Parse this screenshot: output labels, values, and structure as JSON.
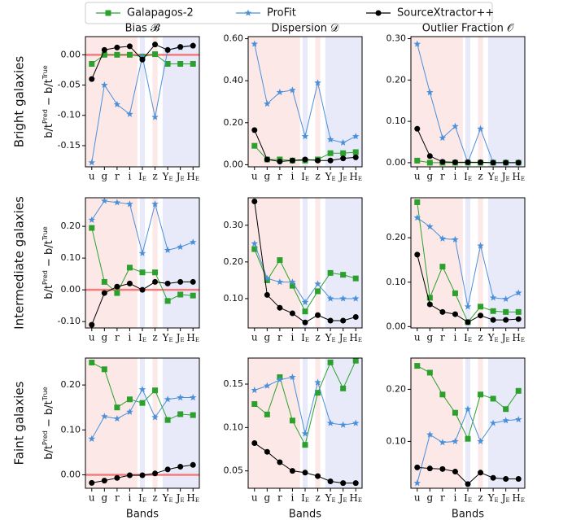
{
  "chart_data": [
    {
      "type": "line",
      "title": "Bias 𝓑",
      "row_label": "Bright galaxies",
      "ylabel": [
        "b/t",
        "Pred",
        " − b/t",
        "True"
      ],
      "categories": [
        "u",
        "g",
        "r",
        "i",
        "IE",
        "z",
        "YE",
        "JE",
        "HE"
      ],
      "series": [
        {
          "name": "Galapagos-2",
          "color": "#2ca02c",
          "marker": "square",
          "values": [
            -0.015,
            0.0,
            0.0,
            0.0,
            -0.003,
            0.001,
            -0.015,
            -0.015,
            -0.015
          ]
        },
        {
          "name": "ProFit",
          "color": "#4a90d9",
          "marker": "star",
          "values": [
            -0.178,
            -0.05,
            -0.082,
            -0.098,
            -0.003,
            -0.103,
            0.008,
            0.012,
            0.015
          ]
        },
        {
          "name": "SourceXtractor++",
          "color": "#000000",
          "marker": "circle",
          "values": [
            -0.04,
            0.008,
            0.012,
            0.014,
            -0.008,
            0.017,
            0.008,
            0.013,
            0.015
          ]
        }
      ],
      "ylim": [
        -0.185,
        0.03
      ],
      "yticks": [
        {
          "value": 0,
          "label": "0.00"
        },
        {
          "value": -0.05,
          "label": "-0.05"
        },
        {
          "value": -0.1,
          "label": "-0.10"
        },
        {
          "value": -0.15,
          "label": "-0.15"
        }
      ],
      "hline": {
        "value": 0,
        "color": "#f47c7c"
      }
    },
    {
      "type": "line",
      "title": "Dispersion 𝒟",
      "categories": [
        "u",
        "g",
        "r",
        "i",
        "IE",
        "z",
        "YE",
        "JE",
        "HE"
      ],
      "series": [
        {
          "name": "Galapagos-2",
          "color": "#2ca02c",
          "marker": "square",
          "values": [
            0.09,
            0.025,
            0.025,
            0.02,
            0.02,
            0.025,
            0.055,
            0.055,
            0.06
          ]
        },
        {
          "name": "ProFit",
          "color": "#4a90d9",
          "marker": "star",
          "values": [
            0.575,
            0.29,
            0.345,
            0.355,
            0.135,
            0.39,
            0.12,
            0.105,
            0.135
          ]
        },
        {
          "name": "SourceXtractor++",
          "color": "#000000",
          "marker": "circle",
          "values": [
            0.165,
            0.025,
            0.015,
            0.02,
            0.025,
            0.02,
            0.02,
            0.03,
            0.035
          ]
        }
      ],
      "ylim": [
        -0.01,
        0.61
      ],
      "yticks": [
        {
          "value": 0,
          "label": "0.00"
        },
        {
          "value": 0.2,
          "label": "0.20"
        },
        {
          "value": 0.4,
          "label": "0.40"
        },
        {
          "value": 0.6,
          "label": "0.60"
        }
      ]
    },
    {
      "type": "line",
      "title": "Outlier Fraction 𝒪",
      "categories": [
        "u",
        "g",
        "r",
        "i",
        "IE",
        "z",
        "YE",
        "JE",
        "HE"
      ],
      "series": [
        {
          "name": "Galapagos-2",
          "color": "#2ca02c",
          "marker": "square",
          "values": [
            0.005,
            0.0,
            0.0,
            0.0,
            0.0,
            0.0,
            0.0,
            0.0,
            0.0
          ]
        },
        {
          "name": "ProFit",
          "color": "#4a90d9",
          "marker": "star",
          "values": [
            0.287,
            0.17,
            0.06,
            0.088,
            0.0,
            0.082,
            0.0,
            0.0,
            0.0
          ]
        },
        {
          "name": "SourceXtractor++",
          "color": "#000000",
          "marker": "circle",
          "values": [
            0.082,
            0.016,
            0.002,
            0.001,
            0.001,
            0.001,
            0.0,
            0.0,
            0.0
          ]
        }
      ],
      "ylim": [
        -0.01,
        0.305
      ],
      "yticks": [
        {
          "value": 0,
          "label": "0.00"
        },
        {
          "value": 0.1,
          "label": "0.10"
        },
        {
          "value": 0.2,
          "label": "0.20"
        },
        {
          "value": 0.3,
          "label": "0.30"
        }
      ]
    },
    {
      "type": "line",
      "row_label": "Intermediate galaxies",
      "ylabel": [
        "b/t",
        "Pred",
        " − b/t",
        "True"
      ],
      "categories": [
        "u",
        "g",
        "r",
        "i",
        "IE",
        "z",
        "YE",
        "JE",
        "HE"
      ],
      "series": [
        {
          "name": "Galapagos-2",
          "color": "#2ca02c",
          "marker": "square",
          "values": [
            0.195,
            0.025,
            -0.01,
            0.07,
            0.055,
            0.055,
            -0.035,
            -0.015,
            -0.018
          ]
        },
        {
          "name": "ProFit",
          "color": "#4a90d9",
          "marker": "star",
          "values": [
            0.22,
            0.28,
            0.275,
            0.27,
            0.115,
            0.27,
            0.125,
            0.135,
            0.15
          ]
        },
        {
          "name": "SourceXtractor++",
          "color": "#000000",
          "marker": "circle",
          "values": [
            -0.11,
            -0.01,
            0.01,
            0.02,
            0.0,
            0.025,
            0.02,
            0.025,
            0.025
          ]
        }
      ],
      "ylim": [
        -0.12,
        0.29
      ],
      "yticks": [
        {
          "value": 0.2,
          "label": "0.20"
        },
        {
          "value": 0.1,
          "label": "0.10"
        },
        {
          "value": 0,
          "label": "0.00"
        },
        {
          "value": -0.1,
          "label": "-0.10"
        }
      ],
      "hline": {
        "value": 0,
        "color": "#f47c7c"
      }
    },
    {
      "type": "line",
      "categories": [
        "u",
        "g",
        "r",
        "i",
        "IE",
        "z",
        "YE",
        "JE",
        "HE"
      ],
      "series": [
        {
          "name": "Galapagos-2",
          "color": "#2ca02c",
          "marker": "square",
          "values": [
            0.235,
            0.15,
            0.205,
            0.135,
            0.065,
            0.12,
            0.17,
            0.165,
            0.155
          ]
        },
        {
          "name": "ProFit",
          "color": "#4a90d9",
          "marker": "star",
          "values": [
            0.25,
            0.155,
            0.145,
            0.145,
            0.09,
            0.14,
            0.1,
            0.1,
            0.1
          ]
        },
        {
          "name": "SourceXtractor++",
          "color": "#000000",
          "marker": "circle",
          "values": [
            0.365,
            0.11,
            0.075,
            0.06,
            0.035,
            0.055,
            0.04,
            0.04,
            0.05
          ]
        }
      ],
      "ylim": [
        0.02,
        0.375
      ],
      "yticks": [
        {
          "value": 0.1,
          "label": "0.10"
        },
        {
          "value": 0.2,
          "label": "0.20"
        },
        {
          "value": 0.3,
          "label": "0.30"
        }
      ]
    },
    {
      "type": "line",
      "categories": [
        "u",
        "g",
        "r",
        "i",
        "IE",
        "z",
        "YE",
        "JE",
        "HE"
      ],
      "series": [
        {
          "name": "Galapagos-2",
          "color": "#2ca02c",
          "marker": "square",
          "values": [
            0.28,
            0.065,
            0.135,
            0.075,
            0.01,
            0.045,
            0.035,
            0.033,
            0.033
          ]
        },
        {
          "name": "ProFit",
          "color": "#4a90d9",
          "marker": "star",
          "values": [
            0.245,
            0.225,
            0.198,
            0.196,
            0.045,
            0.182,
            0.065,
            0.062,
            0.076
          ]
        },
        {
          "name": "SourceXtractor++",
          "color": "#000000",
          "marker": "circle",
          "values": [
            0.162,
            0.05,
            0.033,
            0.028,
            0.01,
            0.025,
            0.015,
            0.015,
            0.017
          ]
        }
      ],
      "ylim": [
        -0.003,
        0.29
      ],
      "yticks": [
        {
          "value": 0,
          "label": "0.00"
        },
        {
          "value": 0.1,
          "label": "0.10"
        },
        {
          "value": 0.2,
          "label": "0.20"
        }
      ]
    },
    {
      "type": "line",
      "row_label": "Faint galaxies",
      "ylabel": [
        "b/t",
        "Pred",
        " − b/t",
        "True"
      ],
      "xlabel": "Bands",
      "categories": [
        "u",
        "g",
        "r",
        "i",
        "IE",
        "z",
        "YE",
        "JE",
        "HE"
      ],
      "series": [
        {
          "name": "Galapagos-2",
          "color": "#2ca02c",
          "marker": "square",
          "values": [
            0.25,
            0.235,
            0.15,
            0.168,
            0.16,
            0.188,
            0.122,
            0.135,
            0.133
          ]
        },
        {
          "name": "ProFit",
          "color": "#4a90d9",
          "marker": "star",
          "values": [
            0.08,
            0.13,
            0.125,
            0.14,
            0.19,
            0.128,
            0.168,
            0.172,
            0.172
          ]
        },
        {
          "name": "SourceXtractor++",
          "color": "#000000",
          "marker": "circle",
          "values": [
            -0.018,
            -0.013,
            -0.007,
            -0.001,
            -0.001,
            0.003,
            0.012,
            0.018,
            0.022
          ]
        }
      ],
      "ylim": [
        -0.03,
        0.26
      ],
      "yticks": [
        {
          "value": 0.2,
          "label": "0.20"
        },
        {
          "value": 0.1,
          "label": "0.10"
        },
        {
          "value": 0,
          "label": "0.00"
        }
      ],
      "hline": {
        "value": 0,
        "color": "#f47c7c"
      }
    },
    {
      "type": "line",
      "xlabel": "Bands",
      "categories": [
        "u",
        "g",
        "r",
        "i",
        "IE",
        "z",
        "YE",
        "JE",
        "HE"
      ],
      "series": [
        {
          "name": "Galapagos-2",
          "color": "#2ca02c",
          "marker": "square",
          "values": [
            0.127,
            0.115,
            0.158,
            0.108,
            0.08,
            0.14,
            0.175,
            0.145,
            0.177
          ]
        },
        {
          "name": "ProFit",
          "color": "#4a90d9",
          "marker": "star",
          "values": [
            0.143,
            0.148,
            0.155,
            0.158,
            0.093,
            0.152,
            0.105,
            0.103,
            0.105
          ]
        },
        {
          "name": "SourceXtractor++",
          "color": "#000000",
          "marker": "circle",
          "values": [
            0.082,
            0.072,
            0.06,
            0.05,
            0.048,
            0.044,
            0.038,
            0.036,
            0.036
          ]
        }
      ],
      "ylim": [
        0.03,
        0.18
      ],
      "yticks": [
        {
          "value": 0.05,
          "label": "0.05"
        },
        {
          "value": 0.1,
          "label": "0.10"
        },
        {
          "value": 0.15,
          "label": "0.15"
        }
      ]
    },
    {
      "type": "line",
      "xlabel": "Bands",
      "categories": [
        "u",
        "g",
        "r",
        "i",
        "IE",
        "z",
        "YE",
        "JE",
        "HE"
      ],
      "series": [
        {
          "name": "Galapagos-2",
          "color": "#2ca02c",
          "marker": "square",
          "values": [
            0.245,
            0.232,
            0.19,
            0.155,
            0.105,
            0.19,
            0.182,
            0.162,
            0.197
          ]
        },
        {
          "name": "ProFit",
          "color": "#4a90d9",
          "marker": "star",
          "values": [
            0.02,
            0.113,
            0.098,
            0.1,
            0.162,
            0.1,
            0.135,
            0.14,
            0.142
          ]
        },
        {
          "name": "SourceXtractor++",
          "color": "#000000",
          "marker": "circle",
          "values": [
            0.05,
            0.048,
            0.047,
            0.042,
            0.018,
            0.04,
            0.03,
            0.028,
            0.028
          ]
        }
      ],
      "ylim": [
        0.01,
        0.26
      ],
      "yticks": [
        {
          "value": 0.1,
          "label": "0.10"
        },
        {
          "value": 0.2,
          "label": "0.20"
        }
      ]
    }
  ]
}
